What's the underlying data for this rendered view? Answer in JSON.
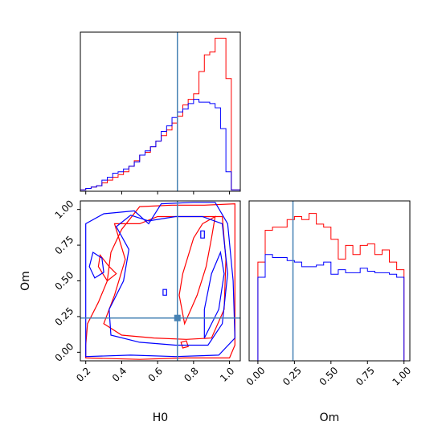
{
  "chart_data": {
    "type": "corner",
    "parameters": [
      "H0",
      "Om"
    ],
    "truths": {
      "H0": 0.71,
      "Om": 0.24
    },
    "colors": {
      "red": "#ff0000",
      "blue": "#0000ff",
      "truth": "#4682b4",
      "frame": "#000000"
    },
    "panels": [
      {
        "name": "hist-H0",
        "type": "histogram",
        "xlim": [
          0.17,
          1.06
        ],
        "xticks": [
          0.2,
          0.4,
          0.6,
          0.8,
          1.0
        ],
        "show_tick_labels": false,
        "bin_edges": [
          0.17,
          0.2,
          0.23,
          0.26,
          0.29,
          0.32,
          0.35,
          0.38,
          0.41,
          0.44,
          0.47,
          0.5,
          0.53,
          0.56,
          0.59,
          0.62,
          0.65,
          0.68,
          0.71,
          0.74,
          0.77,
          0.8,
          0.83,
          0.86,
          0.89,
          0.92,
          0.95,
          0.98,
          1.01,
          1.04,
          1.06
        ],
        "series": [
          {
            "color": "red",
            "counts": [
              1,
              2,
              3,
              4,
              6,
              8,
              10,
              12,
              14,
              18,
              22,
              26,
              28,
              32,
              36,
              40,
              44,
              49,
              54,
              62,
              66,
              70,
              86,
              98,
              100,
              110,
              110,
              81,
              1,
              1
            ]
          },
          {
            "color": "blue",
            "counts": [
              1,
              2,
              3,
              4,
              8,
              10,
              13,
              14,
              16,
              18,
              21,
              26,
              29,
              32,
              36,
              43,
              47,
              53,
              57,
              59,
              63,
              66,
              64,
              64,
              63,
              60,
              45,
              14,
              1,
              1
            ]
          }
        ]
      },
      {
        "name": "hist-Om",
        "type": "histogram",
        "xlim": [
          -0.06,
          1.04
        ],
        "xticks": [
          0.0,
          0.25,
          0.5,
          0.75,
          1.0
        ],
        "xtick_labels": [
          "0.00",
          "0.25",
          "0.50",
          "0.75",
          "1.00"
        ],
        "xlabel": "Om",
        "bin_edges": [
          0.0,
          0.05,
          0.1,
          0.15,
          0.2,
          0.25,
          0.3,
          0.35,
          0.4,
          0.45,
          0.5,
          0.55,
          0.6,
          0.65,
          0.7,
          0.75,
          0.8,
          0.85,
          0.9,
          0.95,
          1.0
        ],
        "series": [
          {
            "color": "red",
            "counts": [
              65,
              86,
              88,
              88,
              93,
              95,
              93,
              97,
              90,
              88,
              80,
              67,
              76,
              70,
              76,
              77,
              70,
              73,
              65,
              60
            ]
          },
          {
            "color": "blue",
            "counts": [
              55,
              70,
              68,
              68,
              66,
              65,
              62,
              62,
              63,
              65,
              57,
              60,
              58,
              58,
              61,
              59,
              58,
              58,
              57,
              55
            ]
          }
        ]
      },
      {
        "name": "contour-H0-Om",
        "type": "contour",
        "xlim": [
          0.17,
          1.06
        ],
        "ylim": [
          -0.06,
          1.06
        ],
        "xticks": [
          0.2,
          0.4,
          0.6,
          0.8,
          1.0
        ],
        "xtick_labels": [
          "0.2",
          "0.4",
          "0.6",
          "0.8",
          "1.0"
        ],
        "yticks": [
          0.0,
          0.25,
          0.5,
          0.75,
          1.0
        ],
        "ytick_labels": [
          "0.00",
          "0.25",
          "0.50",
          "0.75",
          "1.00"
        ],
        "xlabel": "H0",
        "ylabel": "Om",
        "contours": [
          {
            "color": "red",
            "points": [
              [
                0.2,
                -0.04
              ],
              [
                0.5,
                -0.05
              ],
              [
                0.75,
                -0.04
              ],
              [
                1.0,
                -0.04
              ],
              [
                1.03,
                0.05
              ],
              [
                1.03,
                1.04
              ],
              [
                0.86,
                1.03
              ],
              [
                0.68,
                1.03
              ],
              [
                0.5,
                1.02
              ],
              [
                0.4,
                0.86
              ],
              [
                0.34,
                0.7
              ],
              [
                0.32,
                0.5
              ],
              [
                0.27,
                0.35
              ],
              [
                0.21,
                0.2
              ],
              [
                0.2,
                0.05
              ],
              [
                0.2,
                -0.04
              ]
            ]
          },
          {
            "color": "red",
            "points": [
              [
                0.36,
                0.9
              ],
              [
                0.42,
                0.65
              ],
              [
                0.36,
                0.4
              ],
              [
                0.3,
                0.2
              ],
              [
                0.4,
                0.12
              ],
              [
                0.58,
                0.1
              ],
              [
                0.76,
                0.09
              ],
              [
                0.9,
                0.1
              ],
              [
                0.97,
                0.3
              ],
              [
                0.98,
                0.65
              ],
              [
                0.96,
                0.95
              ],
              [
                0.8,
                0.95
              ],
              [
                0.6,
                0.95
              ],
              [
                0.5,
                0.9
              ],
              [
                0.36,
                0.9
              ]
            ]
          },
          {
            "color": "red",
            "points": [
              [
                0.75,
                0.2
              ],
              [
                0.82,
                0.4
              ],
              [
                0.87,
                0.6
              ],
              [
                0.9,
                0.8
              ],
              [
                0.92,
                0.95
              ],
              [
                0.85,
                0.9
              ],
              [
                0.8,
                0.8
              ],
              [
                0.74,
                0.55
              ],
              [
                0.72,
                0.4
              ],
              [
                0.75,
                0.2
              ]
            ]
          },
          {
            "color": "red",
            "points": [
              [
                0.28,
                0.68
              ],
              [
                0.33,
                0.6
              ],
              [
                0.37,
                0.55
              ],
              [
                0.32,
                0.5
              ],
              [
                0.27,
                0.6
              ],
              [
                0.28,
                0.68
              ]
            ]
          },
          {
            "color": "red",
            "points": [
              [
                0.74,
                0.03
              ],
              [
                0.77,
                0.04
              ],
              [
                0.76,
                0.08
              ],
              [
                0.73,
                0.07
              ],
              [
                0.74,
                0.03
              ]
            ]
          },
          {
            "color": "blue",
            "points": [
              [
                0.2,
                -0.03
              ],
              [
                0.45,
                -0.02
              ],
              [
                0.7,
                -0.03
              ],
              [
                0.94,
                -0.02
              ],
              [
                1.03,
                0.1
              ],
              [
                1.02,
                0.5
              ],
              [
                0.99,
                0.9
              ],
              [
                0.92,
                1.05
              ],
              [
                0.8,
                1.05
              ],
              [
                0.62,
                1.04
              ],
              [
                0.55,
                0.9
              ],
              [
                0.47,
                0.99
              ],
              [
                0.3,
                0.97
              ],
              [
                0.2,
                0.9
              ],
              [
                0.2,
                0.5
              ],
              [
                0.2,
                -0.03
              ]
            ]
          },
          {
            "color": "blue",
            "points": [
              [
                0.37,
                0.88
              ],
              [
                0.44,
                0.72
              ],
              [
                0.41,
                0.5
              ],
              [
                0.33,
                0.3
              ],
              [
                0.34,
                0.12
              ],
              [
                0.5,
                0.07
              ],
              [
                0.7,
                0.05
              ],
              [
                0.88,
                0.05
              ],
              [
                0.96,
                0.2
              ],
              [
                0.99,
                0.55
              ],
              [
                0.96,
                0.9
              ],
              [
                0.85,
                0.95
              ],
              [
                0.7,
                0.95
              ],
              [
                0.55,
                0.92
              ],
              [
                0.45,
                0.96
              ],
              [
                0.37,
                0.88
              ]
            ]
          },
          {
            "color": "blue",
            "points": [
              [
                0.86,
                0.1
              ],
              [
                0.94,
                0.3
              ],
              [
                0.97,
                0.55
              ],
              [
                0.95,
                0.7
              ],
              [
                0.9,
                0.55
              ],
              [
                0.86,
                0.3
              ],
              [
                0.86,
                0.1
              ]
            ]
          },
          {
            "color": "blue",
            "points": [
              [
                0.24,
                0.7
              ],
              [
                0.29,
                0.66
              ],
              [
                0.3,
                0.56
              ],
              [
                0.25,
                0.52
              ],
              [
                0.22,
                0.6
              ],
              [
                0.24,
                0.7
              ]
            ]
          },
          {
            "color": "blue",
            "points": [
              [
                0.63,
                0.4
              ],
              [
                0.65,
                0.4
              ],
              [
                0.65,
                0.44
              ],
              [
                0.63,
                0.44
              ],
              [
                0.63,
                0.4
              ]
            ]
          },
          {
            "color": "blue",
            "points": [
              [
                0.84,
                0.8
              ],
              [
                0.86,
                0.8
              ],
              [
                0.86,
                0.85
              ],
              [
                0.84,
                0.85
              ],
              [
                0.84,
                0.8
              ]
            ]
          }
        ]
      }
    ]
  }
}
